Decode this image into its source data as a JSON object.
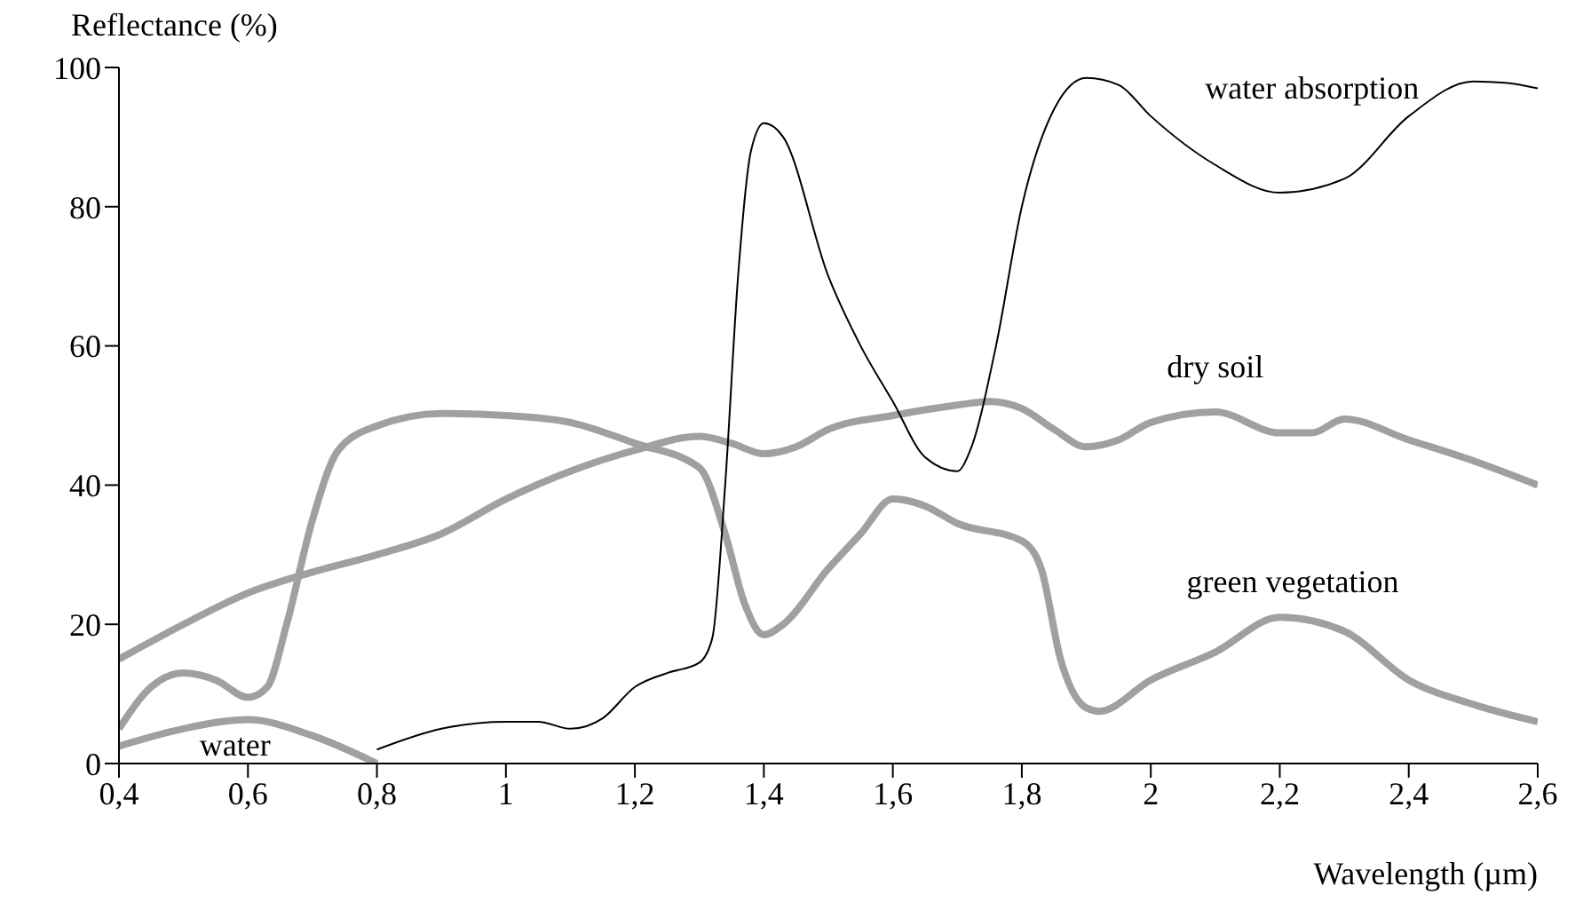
{
  "chart_data": {
    "type": "line",
    "xlabel": "Wavelength (µm)",
    "ylabel": "Reflectance (%)",
    "xlim": [
      0.4,
      2.6
    ],
    "xticks": [
      {
        "value": 0.4,
        "label": "0,4"
      },
      {
        "value": 0.6,
        "label": "0,6"
      },
      {
        "value": 0.8,
        "label": "0,8"
      },
      {
        "value": 1,
        "label": "1"
      },
      {
        "value": 1.2,
        "label": "1,2"
      },
      {
        "value": 1.4,
        "label": "1,4"
      },
      {
        "value": 1.6,
        "label": "1,6"
      },
      {
        "value": 1.8,
        "label": "1,8"
      },
      {
        "value": 2,
        "label": "2"
      },
      {
        "value": 2.2,
        "label": "2,2"
      },
      {
        "value": 2.4,
        "label": "2,4"
      },
      {
        "value": 2.6,
        "label": "2,6"
      }
    ],
    "ylim": [
      0,
      100
    ],
    "yticks": [
      0,
      20,
      40,
      60,
      80,
      100
    ],
    "grid": false,
    "marker": "none",
    "line_style": "solid",
    "series": [
      {
        "name": "green vegetation",
        "color": "#a0a0a0",
        "x": [
          0.4,
          0.45,
          0.5,
          0.55,
          0.6,
          0.63,
          0.66,
          0.7,
          0.74,
          0.8,
          0.9,
          1.0,
          1.1,
          1.2,
          1.3,
          1.34,
          1.37,
          1.4,
          1.43,
          1.5,
          1.55,
          1.6,
          1.65,
          1.7,
          1.8,
          1.83,
          1.86,
          1.9,
          1.92,
          2.0,
          2.1,
          2.2,
          2.3,
          2.4,
          2.5,
          2.6
        ],
        "values": [
          5,
          11,
          13,
          12,
          9.5,
          11,
          20,
          35,
          45,
          48.5,
          50.3,
          50,
          49,
          46,
          42.5,
          33,
          23,
          18.5,
          20,
          28,
          33,
          38,
          37,
          34.5,
          32,
          28,
          15,
          8,
          7.5,
          12,
          16,
          21,
          19,
          12,
          8.5,
          6
        ]
      },
      {
        "name": "dry soil",
        "color": "#a0a0a0",
        "x": [
          0.4,
          0.5,
          0.6,
          0.7,
          0.8,
          0.9,
          1.0,
          1.1,
          1.2,
          1.3,
          1.35,
          1.4,
          1.45,
          1.5,
          1.6,
          1.7,
          1.75,
          1.8,
          1.85,
          1.9,
          1.95,
          2.0,
          2.1,
          2.2,
          2.25,
          2.3,
          2.4,
          2.5,
          2.6
        ],
        "values": [
          15,
          20,
          24.5,
          27.5,
          30,
          33,
          38,
          42,
          45,
          47,
          46,
          44.5,
          45.5,
          48,
          50,
          51.5,
          52,
          51,
          48,
          45.5,
          46.5,
          49,
          50.5,
          47.5,
          47.5,
          49.5,
          46.5,
          43.5,
          40
        ]
      },
      {
        "name": "water",
        "color": "#a0a0a0",
        "x": [
          0.4,
          0.5,
          0.6,
          0.7,
          0.8
        ],
        "values": [
          2.5,
          5,
          6.3,
          4,
          0
        ]
      },
      {
        "name": "water absorption",
        "color": "#000000",
        "x": [
          0.8,
          0.9,
          1.0,
          1.05,
          1.1,
          1.15,
          1.2,
          1.25,
          1.3,
          1.32,
          1.34,
          1.36,
          1.38,
          1.4,
          1.43,
          1.5,
          1.55,
          1.6,
          1.65,
          1.7,
          1.72,
          1.76,
          1.8,
          1.85,
          1.9,
          1.95,
          2.0,
          2.1,
          2.2,
          2.3,
          2.4,
          2.5,
          2.55,
          2.6
        ],
        "values": [
          2,
          5,
          6,
          6,
          5,
          6.5,
          11,
          13,
          14.5,
          18,
          40,
          70,
          88,
          92,
          90,
          70,
          60,
          52,
          44,
          42,
          45,
          60,
          80,
          94,
          98.5,
          97.5,
          93,
          86,
          82,
          84,
          93,
          98,
          97.8,
          97
        ]
      }
    ]
  }
}
